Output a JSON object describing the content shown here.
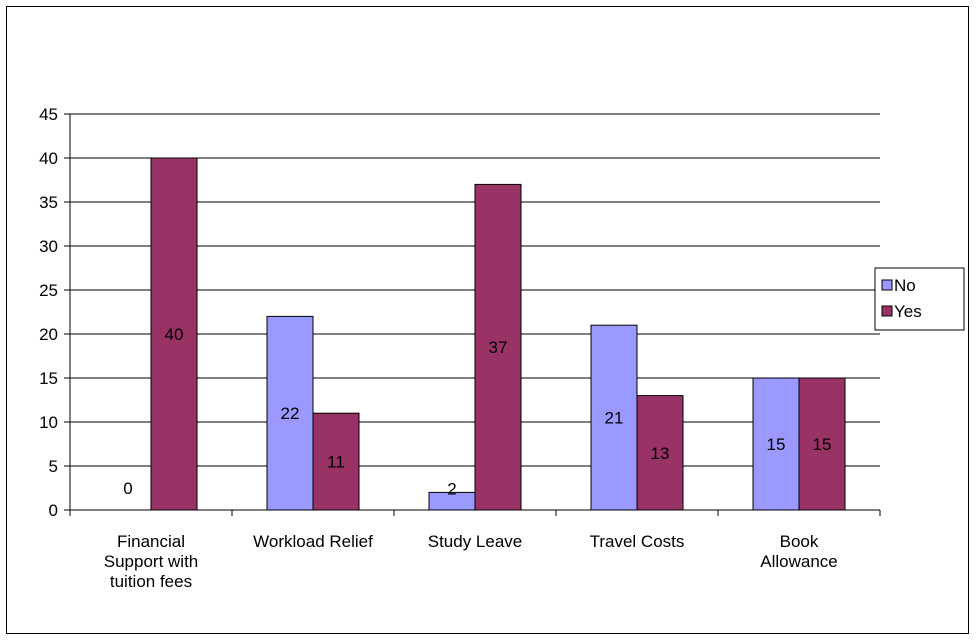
{
  "colors": {
    "no": "#9999ff",
    "yes": "#993366",
    "grid": "#000000",
    "border": "#000000"
  },
  "chart_data": {
    "type": "bar",
    "categories": [
      [
        "Financial",
        "Support with",
        "tuition fees"
      ],
      [
        "Workload Relief"
      ],
      [
        "Study Leave"
      ],
      [
        "Travel Costs"
      ],
      [
        "Book",
        "Allowance"
      ]
    ],
    "series": [
      {
        "name": "No",
        "values": [
          0,
          22,
          2,
          21,
          15
        ]
      },
      {
        "name": "Yes",
        "values": [
          40,
          11,
          37,
          13,
          15
        ]
      }
    ],
    "ylim": [
      0,
      45
    ],
    "yticks": [
      0,
      5,
      10,
      15,
      20,
      25,
      30,
      35,
      40,
      45
    ],
    "grid": true,
    "legend_position": "right",
    "data_labels": true
  }
}
